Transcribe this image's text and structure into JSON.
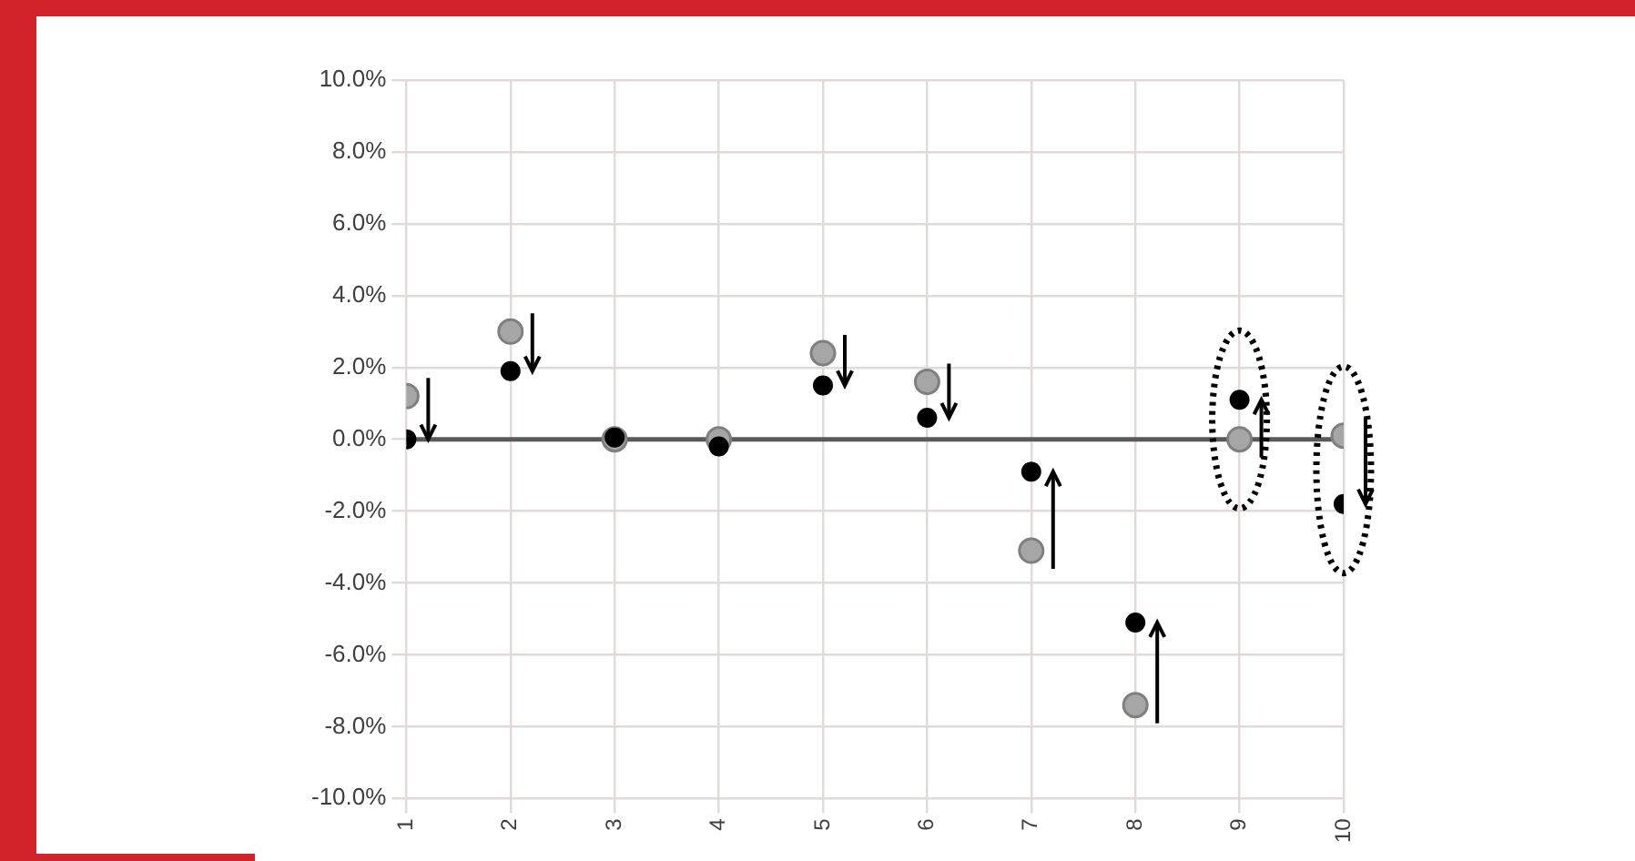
{
  "chart_data": {
    "type": "scatter",
    "x": [
      1,
      2,
      3,
      4,
      5,
      6,
      7,
      8,
      9,
      10
    ],
    "series": [
      {
        "color": "#a6a6a6",
        "values": [
          1.2,
          3.0,
          0.0,
          0.0,
          2.4,
          1.6,
          -3.1,
          -7.4,
          0.0,
          0.1
        ]
      },
      {
        "color": "#000000",
        "values": [
          0.0,
          1.9,
          0.05,
          -0.2,
          1.5,
          0.6,
          -0.9,
          -5.1,
          1.1,
          -1.8
        ]
      }
    ],
    "xlim": [
      1,
      10
    ],
    "xticks": [
      1,
      2,
      3,
      4,
      5,
      6,
      7,
      8,
      9,
      10
    ],
    "ylim": [
      -10,
      10
    ],
    "yticks": [
      {
        "value": -10,
        "label": "-10.0%"
      },
      {
        "value": -8,
        "label": "-8.0%"
      },
      {
        "value": -6,
        "label": "-6.0%"
      },
      {
        "value": -4,
        "label": "-4.0%"
      },
      {
        "value": -2,
        "label": "-2.0%"
      },
      {
        "value": 0,
        "label": "0.0%"
      },
      {
        "value": 2,
        "label": "2.0%"
      },
      {
        "value": 4,
        "label": "4.0%"
      },
      {
        "value": 6,
        "label": "6.0%"
      },
      {
        "value": 8,
        "label": "8.0%"
      },
      {
        "value": 10,
        "label": "10.0%"
      }
    ],
    "ref_lines": [
      {
        "axis": "y",
        "value": 0,
        "color": "#595959"
      }
    ],
    "grid": true,
    "marker": "circle",
    "legend": false
  }
}
